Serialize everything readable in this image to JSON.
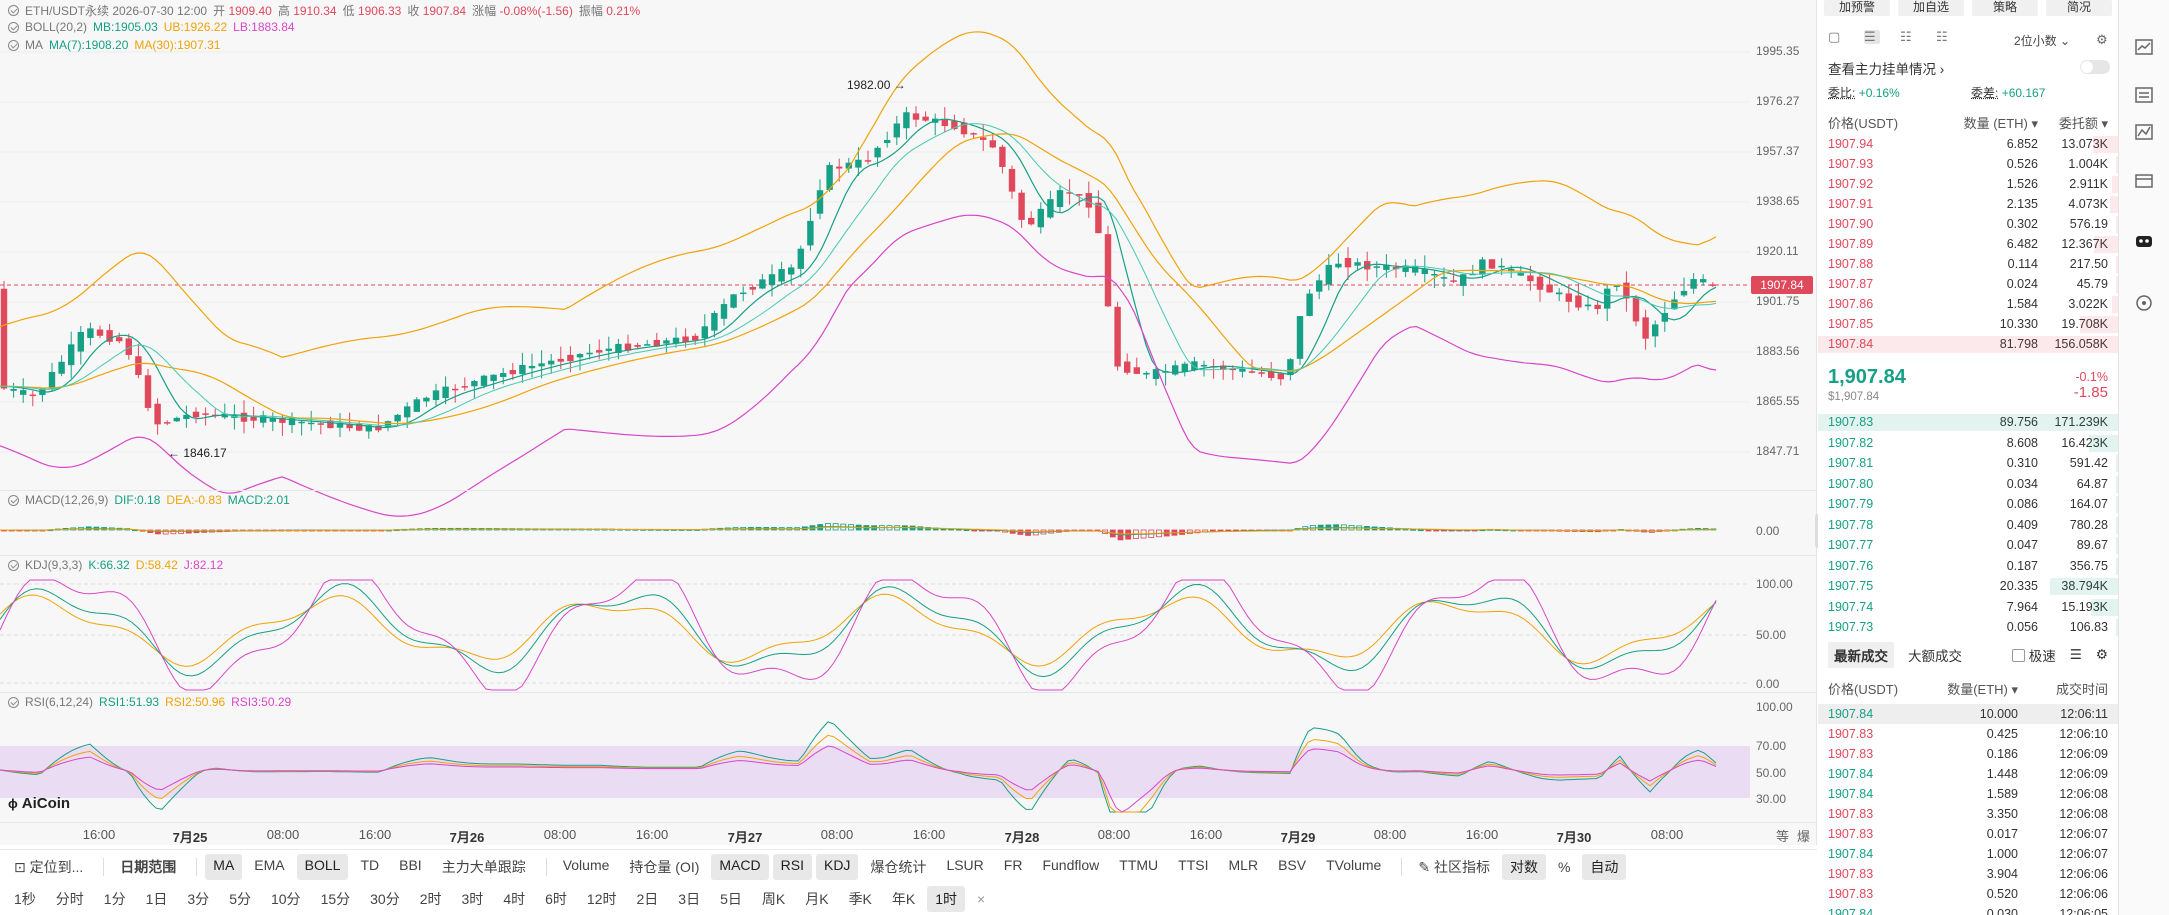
{
  "legend": {
    "title": "ETH/USDT永续  2026-07-30 12:00",
    "open_label": "开",
    "open": "1909.40",
    "high_label": "高",
    "high": "1910.34",
    "low_label": "低",
    "low": "1906.33",
    "close_label": "收",
    "close": "1907.84",
    "change_label": "涨幅",
    "change": "-0.08%(-1.56)",
    "amp_label": "振幅",
    "amp": "0.21%",
    "boll": "BOLL(20,2)",
    "boll_mb": "MB:1905.03",
    "boll_ub": "UB:1926.22",
    "boll_lb": "LB:1883.84",
    "ma": "MA",
    "ma7": "MA(7):1908.20",
    "ma30": "MA(30):1907.31",
    "macd": "MACD(12,26,9)",
    "macd_dif": "DIF:0.18",
    "macd_dea": "DEA:-0.83",
    "macd_val": "MACD:2.01",
    "kdj": "KDJ(9,3,3)",
    "kdj_k": "K:66.32",
    "kdj_d": "D:58.42",
    "kdj_j": "J:82.12",
    "rsi": "RSI(6,12,24)",
    "rsi1": "RSI1:51.93",
    "rsi2": "RSI2:50.96",
    "rsi3": "RSI3:50.29"
  },
  "price_axis": [
    "1995.35",
    "1976.27",
    "1957.37",
    "1938.65",
    "1920.11",
    "1901.75",
    "1883.56",
    "1865.55",
    "1847.71"
  ],
  "current_price_tag": "1907.84",
  "macd_axis": [
    "0.00"
  ],
  "kdj_axis": [
    "100.00",
    "50.00",
    "0.00"
  ],
  "rsi_axis": [
    "100.00",
    "70.00",
    "50.00",
    "30.00"
  ],
  "annotations": {
    "high": "1982.00",
    "low": "1846.17"
  },
  "time_axis": [
    "16:00",
    "7月25",
    "08:00",
    "16:00",
    "7月26",
    "08:00",
    "16:00",
    "7月27",
    "08:00",
    "16:00",
    "7月28",
    "08:00",
    "16:00",
    "7月29",
    "08:00",
    "16:00",
    "7月30",
    "08:00"
  ],
  "time_axis_bold": [
    1,
    4,
    7,
    10,
    13,
    16
  ],
  "axis_corner": [
    "等",
    "爆"
  ],
  "logo": "AiCoin",
  "toolbar1": {
    "draw": "定位到...",
    "date_range": "日期范围",
    "indicators": [
      "MA",
      "EMA",
      "BOLL",
      "TD",
      "BBI",
      "主力大单跟踪"
    ],
    "sub": [
      "Volume",
      "持仓量 (OI)",
      "MACD",
      "RSI",
      "KDJ",
      "爆仓统计",
      "LSUR",
      "FR",
      "Fundflow",
      "TTMU",
      "TTSI",
      "MLR",
      "BSV",
      "TVolume"
    ],
    "community": "社区指标",
    "log": "对数",
    "pct": "%",
    "auto": "自动"
  },
  "toolbar2": [
    "1秒",
    "分时",
    "1分",
    "1日",
    "3分",
    "5分",
    "10分",
    "15分",
    "30分",
    "2时",
    "3时",
    "4时",
    "6时",
    "12时",
    "2日",
    "3日",
    "5日",
    "周K",
    "月K",
    "季K",
    "年K",
    "1时"
  ],
  "right": {
    "buttons": [
      "加预警",
      "加自选",
      "策略",
      "简况"
    ],
    "decimals": "2位小数",
    "depth_link": "查看主力挂单情况",
    "ratio_label": "委比:",
    "ratio": "+0.16%",
    "diff_label": "委差:",
    "diff": "+60.167",
    "headers": [
      "价格(USDT)",
      "数量 (ETH)",
      "委托额"
    ],
    "asks": [
      [
        "1907.94",
        "6.852",
        "13.073K"
      ],
      [
        "1907.93",
        "0.526",
        "1.004K"
      ],
      [
        "1907.92",
        "1.526",
        "2.911K"
      ],
      [
        "1907.91",
        "2.135",
        "4.073K"
      ],
      [
        "1907.90",
        "0.302",
        "576.19"
      ],
      [
        "1907.89",
        "6.482",
        "12.367K"
      ],
      [
        "1907.88",
        "0.114",
        "217.50"
      ],
      [
        "1907.87",
        "0.024",
        "45.79"
      ],
      [
        "1907.86",
        "1.584",
        "3.022K"
      ],
      [
        "1907.85",
        "10.330",
        "19.708K"
      ],
      [
        "1907.84",
        "81.798",
        "156.058K"
      ]
    ],
    "mid_price": "1,907.84",
    "mid_usd": "$1,907.84",
    "mid_pct": "-0.1%",
    "mid_diff": "-1.85",
    "bids": [
      [
        "1907.83",
        "89.756",
        "171.239K"
      ],
      [
        "1907.82",
        "8.608",
        "16.423K"
      ],
      [
        "1907.81",
        "0.310",
        "591.42"
      ],
      [
        "1907.80",
        "0.034",
        "64.87"
      ],
      [
        "1907.79",
        "0.086",
        "164.07"
      ],
      [
        "1907.78",
        "0.409",
        "780.28"
      ],
      [
        "1907.77",
        "0.047",
        "89.67"
      ],
      [
        "1907.76",
        "0.187",
        "356.75"
      ],
      [
        "1907.75",
        "20.335",
        "38.794K"
      ],
      [
        "1907.74",
        "7.964",
        "15.193K"
      ],
      [
        "1907.73",
        "0.056",
        "106.83"
      ]
    ],
    "tabs": [
      "最新成交",
      "大额成交",
      "极速"
    ],
    "trade_headers": [
      "价格(USDT)",
      "数量(ETH)",
      "成交时间"
    ],
    "trades": [
      [
        "1907.84",
        "10.000",
        "12:06:11",
        "buy"
      ],
      [
        "1907.83",
        "0.425",
        "12:06:10",
        "sell"
      ],
      [
        "1907.83",
        "0.186",
        "12:06:09",
        "sell"
      ],
      [
        "1907.84",
        "1.448",
        "12:06:09",
        "buy"
      ],
      [
        "1907.84",
        "1.589",
        "12:06:08",
        "buy"
      ],
      [
        "1907.83",
        "3.350",
        "12:06:08",
        "sell"
      ],
      [
        "1907.83",
        "0.017",
        "12:06:07",
        "sell"
      ],
      [
        "1907.84",
        "1.000",
        "12:06:07",
        "buy"
      ],
      [
        "1907.83",
        "3.904",
        "12:06:06",
        "sell"
      ],
      [
        "1907.83",
        "0.520",
        "12:06:06",
        "sell"
      ],
      [
        "1907.84",
        "0.030",
        "12:06:05",
        "buy"
      ]
    ]
  },
  "colors": {
    "up": "#16a085",
    "down": "#e0485b",
    "ma7": "#16a085",
    "ma30": "#f0a30a",
    "boll_ub": "#f0a30a",
    "boll_lb": "#d946c9"
  }
}
